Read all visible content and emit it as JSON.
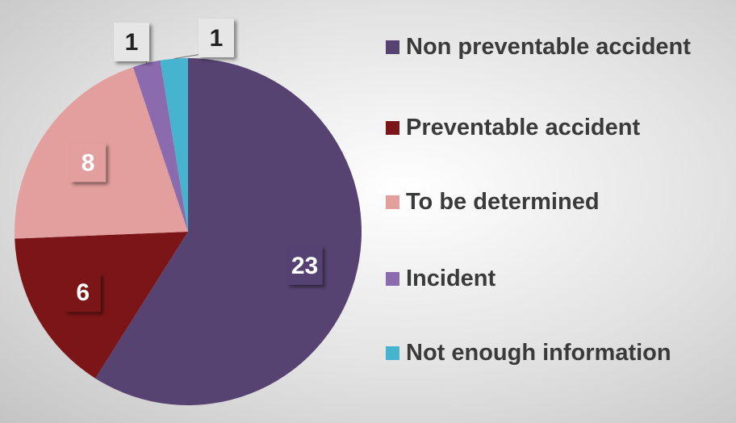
{
  "chart_data": {
    "type": "pie",
    "categories": [
      "Non preventable accident",
      "Preventable accident",
      "To be determined",
      "Incident",
      "Not enough information"
    ],
    "values": [
      23,
      6,
      8,
      1,
      1
    ],
    "colors": [
      "#574372",
      "#7b1518",
      "#e29f9d",
      "#8c6aae",
      "#46b3cf"
    ]
  }
}
